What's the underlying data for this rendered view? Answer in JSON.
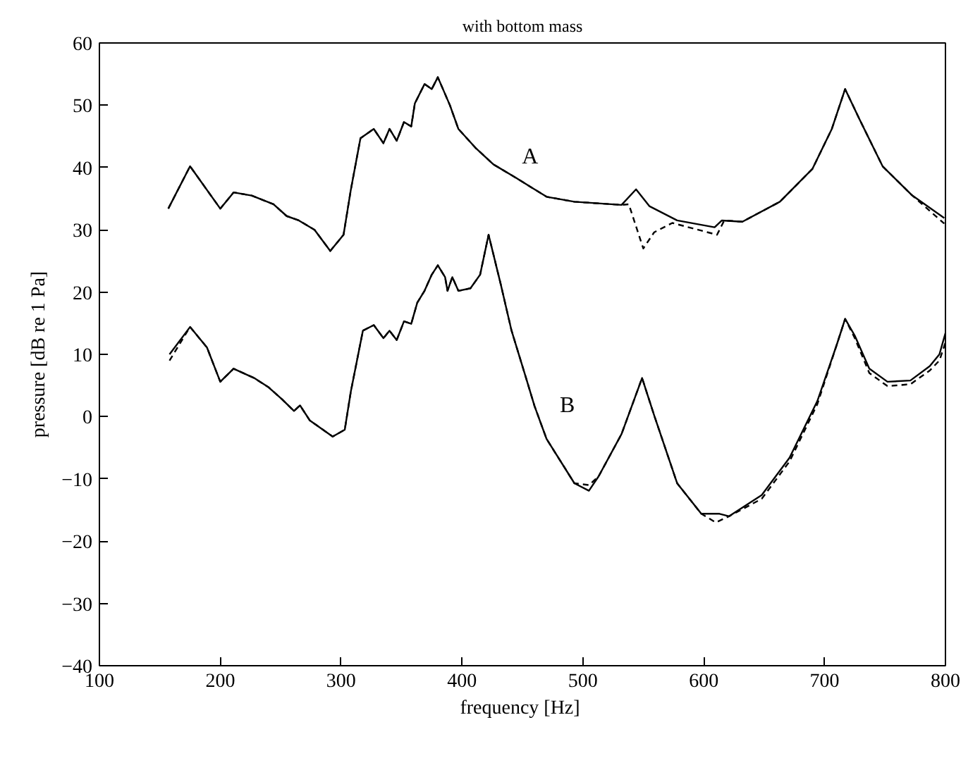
{
  "chart_data": {
    "type": "line",
    "title": "with bottom mass",
    "xlabel": "frequency  [Hz]",
    "ylabel": "pressure [dB re 1 Pa]",
    "xlim": [
      100,
      800
    ],
    "xticks": [
      100,
      200,
      300,
      400,
      500,
      600,
      700,
      800
    ],
    "ylim": [
      -40,
      60
    ],
    "yticks": [
      -40,
      -30,
      -20,
      -10,
      0,
      10,
      20,
      30,
      40,
      50,
      60
    ],
    "grid": false,
    "annotations": [
      "A",
      "B"
    ],
    "series": [
      {
        "color": "#000000",
        "line_style": "solid",
        "x": [
          157,
          175,
          200,
          211,
          226,
          244,
          255,
          265,
          278,
          291,
          302,
          308,
          316,
          327,
          335,
          340,
          346,
          352,
          358,
          361,
          369,
          375,
          380,
          390,
          397,
          411,
          426,
          445,
          470,
          493,
          532,
          544,
          555,
          578,
          609,
          615,
          632,
          663,
          690,
          706,
          717,
          729,
          748,
          772,
          799
        ],
        "values": [
          33.4,
          40.2,
          33.4,
          36.0,
          35.5,
          34.1,
          32.2,
          31.5,
          30.0,
          26.6,
          29.2,
          36.4,
          44.7,
          46.2,
          43.9,
          46.2,
          44.3,
          47.3,
          46.6,
          50.3,
          53.4,
          52.6,
          54.5,
          50.0,
          46.2,
          43.2,
          40.5,
          38.3,
          35.3,
          34.5,
          34.0,
          36.5,
          33.8,
          31.5,
          30.4,
          31.5,
          31.3,
          34.5,
          39.8,
          46.2,
          52.6,
          47.7,
          40.2,
          35.6,
          31.9
        ]
      },
      {
        "color": "#000000",
        "line_style": "dashed",
        "x": [
          157,
          175,
          200,
          211,
          226,
          244,
          255,
          265,
          278,
          291,
          302,
          308,
          316,
          327,
          335,
          340,
          346,
          352,
          358,
          361,
          369,
          375,
          380,
          390,
          397,
          411,
          426,
          445,
          470,
          493,
          532,
          538,
          550,
          559,
          574,
          611,
          617,
          632,
          663,
          690,
          706,
          717,
          729,
          748,
          772,
          799
        ],
        "values": [
          33.4,
          40.2,
          33.4,
          36.0,
          35.5,
          34.1,
          32.2,
          31.5,
          30.0,
          26.6,
          29.2,
          36.4,
          44.7,
          46.2,
          43.9,
          46.2,
          44.3,
          47.3,
          46.6,
          50.3,
          53.4,
          52.6,
          54.5,
          50.0,
          46.2,
          43.2,
          40.5,
          38.3,
          35.3,
          34.5,
          34.0,
          34.1,
          27.0,
          29.6,
          31.1,
          29.2,
          31.5,
          31.3,
          34.5,
          39.8,
          46.2,
          52.6,
          47.7,
          40.2,
          35.6,
          31.0
        ]
      },
      {
        "color": "#000000",
        "line_style": "solid",
        "x": [
          158,
          175,
          189,
          200,
          211,
          228,
          240,
          251,
          261,
          266,
          274,
          293,
          303,
          308,
          318,
          327,
          335,
          340,
          346,
          352,
          358,
          363,
          369,
          375,
          380,
          386,
          388,
          392,
          397,
          407,
          415,
          422,
          432,
          441,
          453,
          460,
          470,
          493,
          505,
          513,
          532,
          549,
          559,
          578,
          598,
          613,
          621,
          648,
          671,
          694,
          710,
          717,
          725,
          737,
          752,
          771,
          787,
          795,
          800
        ],
        "values": [
          10.0,
          14.4,
          11.1,
          5.6,
          7.7,
          6.2,
          4.7,
          2.8,
          0.9,
          1.8,
          -0.6,
          -3.2,
          -2.1,
          4.0,
          13.8,
          14.7,
          12.6,
          13.8,
          12.3,
          15.3,
          14.9,
          18.3,
          20.2,
          22.8,
          24.3,
          22.4,
          20.2,
          22.4,
          20.2,
          20.6,
          22.8,
          29.2,
          21.3,
          13.8,
          6.2,
          1.7,
          -3.6,
          -10.7,
          -11.9,
          -9.6,
          -2.8,
          6.2,
          0.2,
          -10.7,
          -15.6,
          -15.6,
          -16.0,
          -12.6,
          -6.6,
          2.5,
          11.5,
          15.7,
          13.0,
          7.7,
          5.6,
          5.8,
          8.1,
          10.0,
          13.4
        ]
      },
      {
        "color": "#000000",
        "line_style": "dashed",
        "x": [
          158,
          175,
          189,
          200,
          211,
          228,
          240,
          251,
          261,
          266,
          274,
          293,
          303,
          308,
          318,
          327,
          335,
          340,
          346,
          352,
          358,
          363,
          369,
          375,
          380,
          386,
          388,
          392,
          397,
          407,
          415,
          422,
          432,
          441,
          453,
          460,
          470,
          493,
          505,
          513,
          532,
          549,
          559,
          578,
          598,
          610,
          621,
          648,
          671,
          694,
          710,
          717,
          725,
          737,
          752,
          771,
          787,
          795,
          800
        ],
        "values": [
          9.0,
          14.4,
          11.1,
          5.6,
          7.7,
          6.2,
          4.7,
          2.8,
          0.9,
          1.8,
          -0.6,
          -3.2,
          -2.1,
          4.0,
          13.8,
          14.7,
          12.6,
          13.8,
          12.3,
          15.3,
          14.9,
          18.3,
          20.2,
          22.8,
          24.3,
          22.4,
          20.2,
          22.4,
          20.2,
          20.6,
          22.8,
          29.2,
          21.3,
          13.8,
          6.2,
          1.7,
          -3.6,
          -10.7,
          -11.0,
          -9.6,
          -2.8,
          6.2,
          0.2,
          -10.7,
          -15.6,
          -17.0,
          -16.0,
          -13.2,
          -7.2,
          2.0,
          11.5,
          15.7,
          12.6,
          7.0,
          4.9,
          5.2,
          7.4,
          9.0,
          11.9
        ]
      }
    ]
  }
}
